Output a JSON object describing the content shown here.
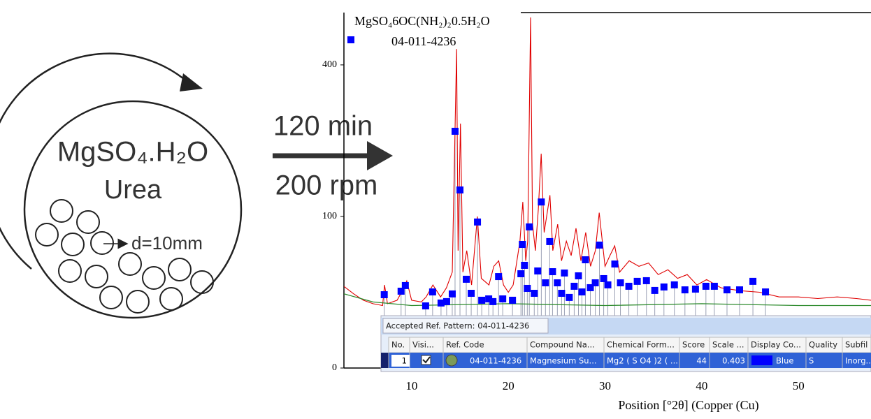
{
  "diagram": {
    "reactants": "MgSO₄.H₂O",
    "additive": "Urea",
    "ball_size": "d=10mm",
    "time": "120 min",
    "speed": "200 rpm"
  },
  "chart_data": {
    "type": "line",
    "legend_title": "MgSO₄6OC(NH₂)₂0.5H₂O",
    "x_label": "Position [°2θ] (Copper (Cu)",
    "xlim": [
      3,
      57.5
    ],
    "xticks": [
      10,
      20,
      30,
      40,
      50
    ],
    "ylim": [
      0,
      550
    ],
    "yticks": [
      0,
      100,
      400
    ],
    "y_scale": "sqrt",
    "observed": {
      "color": "#e00000",
      "x": [
        3,
        4,
        5,
        6,
        7,
        7.2,
        7.5,
        8.5,
        9.2,
        9.5,
        10,
        11,
        11.5,
        12.2,
        13,
        13.6,
        14.2,
        14.65,
        14.8,
        15.05,
        15.3,
        15.7,
        16.2,
        16.8,
        17.2,
        18,
        18.5,
        19,
        19.5,
        20,
        20.5,
        21.2,
        21.5,
        21.8,
        22.0,
        22.3,
        22.5,
        22.8,
        23.1,
        23.4,
        23.7,
        24.3,
        24.6,
        25.1,
        25.5,
        26,
        26.5,
        27,
        27.5,
        28,
        28.5,
        29,
        29.4,
        30,
        30.5,
        31,
        31.5,
        32.5,
        33.5,
        34.5,
        35.5,
        36.5,
        37.5,
        38.5,
        39.5,
        40.5,
        42,
        44,
        46,
        48,
        50,
        52,
        54,
        56,
        57.5
      ],
      "values": [
        29,
        24,
        20,
        18,
        17,
        30,
        18,
        20,
        28,
        33,
        20,
        19,
        22,
        30,
        22,
        28,
        40,
        443,
        60,
        260,
        40,
        60,
        30,
        100,
        35,
        30,
        45,
        50,
        30,
        25,
        30,
        70,
        120,
        50,
        70,
        535,
        90,
        60,
        110,
        200,
        80,
        130,
        60,
        90,
        50,
        70,
        55,
        85,
        50,
        80,
        45,
        60,
        105,
        45,
        55,
        65,
        40,
        50,
        45,
        48,
        38,
        42,
        35,
        38,
        30,
        34,
        28,
        26,
        25,
        22,
        22,
        21,
        22,
        21,
        20
      ]
    },
    "background": {
      "color": "#2e8b2e",
      "x": [
        3,
        6,
        10,
        20,
        30,
        40,
        50,
        57.5
      ],
      "values": [
        24,
        19,
        17,
        18,
        17,
        18,
        17,
        17
      ]
    },
    "series": [
      {
        "name": "04-011-4236",
        "color": "#0000ff",
        "x": [
          7.17,
          8.91,
          9.35,
          11.45,
          12.17,
          13.04,
          13.62,
          14.2,
          14.49,
          15.0,
          15.65,
          16.16,
          16.81,
          17.25,
          17.97,
          18.41,
          18.99,
          19.42,
          20.43,
          21.3,
          21.45,
          21.67,
          21.96,
          22.17,
          22.68,
          23.04,
          23.41,
          23.84,
          24.28,
          24.57,
          25.07,
          25.51,
          25.8,
          26.3,
          26.81,
          27.25,
          27.61,
          27.97,
          28.48,
          28.99,
          29.42,
          29.86,
          30.29,
          31.01,
          31.59,
          32.46,
          33.33,
          34.28,
          35.14,
          36.09,
          37.17,
          38.26,
          39.35,
          40.43,
          41.3,
          42.61,
          43.91,
          45.29,
          46.59
        ],
        "values": [
          23.4,
          25.7,
          29.6,
          16.8,
          25.2,
          18.4,
          19.2,
          23.9,
          244,
          138,
          34.3,
          24.3,
          92.8,
          20.0,
          20.8,
          19.2,
          36.4,
          20.8,
          20.0,
          38.7,
          66.5,
          45.9,
          27.6,
          86.7,
          24.3,
          41.0,
          120,
          31.6,
          69.6,
          40.4,
          31.6,
          24.3,
          39.3,
          21.7,
          29.1,
          37.0,
          25.2,
          51.0,
          28.1,
          31.6,
          65.8,
          34.8,
          30.1,
          47.1,
          31.6,
          29.1,
          32.7,
          33.2,
          26.2,
          28.6,
          30.1,
          26.6,
          27.1,
          29.1,
          29.1,
          26.6,
          26.6,
          32.7,
          25.2
        ]
      }
    ]
  },
  "overlay_table": {
    "title": "Accepted Ref. Pattern: 04-011-4236",
    "headers": [
      "No.",
      "Visi...",
      "Ref. Code",
      "Compound Na...",
      "Chemical Form...",
      "Score",
      "Scale ...",
      "Display Co...",
      "Quality",
      "Subfil"
    ],
    "rows": [
      [
        "1",
        "",
        "04-011-4236",
        "Magnesium Su...",
        "Mg2 ( S O4 )2 ( ...",
        "44",
        "0.403",
        "Blue",
        "S",
        "Inorg..."
      ]
    ]
  }
}
